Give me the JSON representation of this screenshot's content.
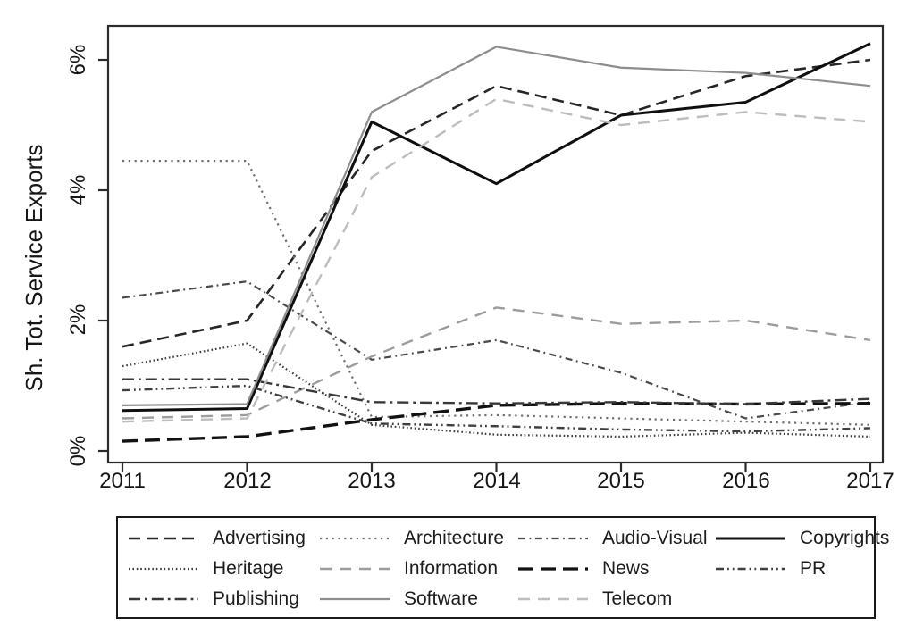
{
  "chart_data": {
    "type": "line",
    "title": "",
    "xlabel": "",
    "ylabel": "Sh. Tot. Service Exports",
    "x": [
      2011,
      2012,
      2013,
      2014,
      2015,
      2016,
      2017
    ],
    "ylim": [
      0,
      6.5
    ],
    "y_tick_values": [
      0,
      2,
      4,
      6
    ],
    "y_tick_labels": [
      "0%",
      "2%",
      "4%",
      "6%"
    ],
    "grid": false,
    "legend_position": "bottom-box",
    "axis_color": "#2b2b2b",
    "background": "#ffffff",
    "series": [
      {
        "name": "Advertising",
        "color": "#262626",
        "width": 2.6,
        "dash": "13 7",
        "values": [
          1.6,
          2.0,
          4.6,
          5.6,
          5.15,
          5.75,
          6.0
        ]
      },
      {
        "name": "Architecture",
        "color": "#6f6f6f",
        "width": 2.2,
        "dash": "2.2 4.6",
        "values": [
          4.45,
          4.45,
          0.52,
          0.55,
          0.5,
          0.45,
          0.4
        ]
      },
      {
        "name": "Audio-Visual",
        "color": "#4a4a4a",
        "width": 2.2,
        "dash": "8 4.5 1.8 4.5",
        "values": [
          2.35,
          2.6,
          1.4,
          1.7,
          1.2,
          0.5,
          0.75
        ]
      },
      {
        "name": "Copyrights",
        "color": "#0f0f0f",
        "width": 3.0,
        "dash": "",
        "values": [
          0.62,
          0.65,
          5.05,
          4.1,
          5.15,
          5.35,
          6.25
        ]
      },
      {
        "name": "Heritage",
        "color": "#3c3c3c",
        "width": 2.2,
        "dash": "1.6 2.8",
        "values": [
          1.3,
          1.65,
          0.4,
          0.25,
          0.22,
          0.28,
          0.22
        ]
      },
      {
        "name": "Information",
        "color": "#9c9c9c",
        "width": 2.4,
        "dash": "13 9",
        "values": [
          0.5,
          0.55,
          1.45,
          2.2,
          1.95,
          2.0,
          1.7
        ]
      },
      {
        "name": "News",
        "color": "#111111",
        "width": 3.4,
        "dash": "17 8",
        "values": [
          0.15,
          0.22,
          0.48,
          0.7,
          0.73,
          0.72,
          0.73
        ]
      },
      {
        "name": "PR",
        "color": "#3f3f3f",
        "width": 2.4,
        "dash": "9 4 1.8 4 1.8 4",
        "values": [
          0.93,
          1.0,
          0.42,
          0.38,
          0.33,
          0.3,
          0.35
        ]
      },
      {
        "name": "Publishing",
        "color": "#383838",
        "width": 2.4,
        "dash": "13 5 2.8 5",
        "values": [
          1.1,
          1.1,
          0.75,
          0.73,
          0.75,
          0.72,
          0.8
        ]
      },
      {
        "name": "Software",
        "color": "#8d8d8d",
        "width": 2.2,
        "dash": "",
        "values": [
          0.7,
          0.72,
          5.2,
          6.2,
          5.88,
          5.8,
          5.6
        ]
      },
      {
        "name": "Telecom",
        "color": "#bdbdbd",
        "width": 2.4,
        "dash": "13 9",
        "values": [
          0.45,
          0.5,
          4.2,
          5.4,
          5.0,
          5.2,
          5.05
        ]
      }
    ]
  }
}
